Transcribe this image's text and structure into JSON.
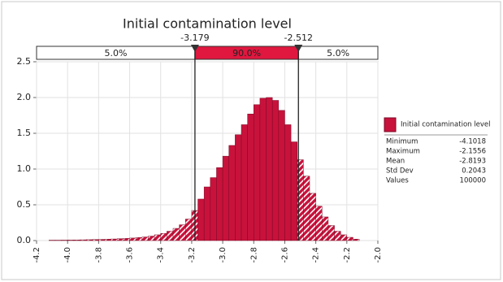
{
  "chart_data": {
    "type": "histogram",
    "title": "Initial contamination level",
    "series_name": "Initial contamination level",
    "color": "#c8123c",
    "bins": [
      -4.12,
      -4.08,
      -4.04,
      -4.0,
      -3.96,
      -3.92,
      -3.88,
      -3.84,
      -3.8,
      -3.76,
      -3.72,
      -3.68,
      -3.64,
      -3.6,
      -3.56,
      -3.52,
      -3.48,
      -3.44,
      -3.4,
      -3.36,
      -3.32,
      -3.28,
      -3.24,
      -3.2,
      -3.16,
      -3.12,
      -3.08,
      -3.04,
      -3.0,
      -2.96,
      -2.92,
      -2.88,
      -2.84,
      -2.8,
      -2.76,
      -2.72,
      -2.68,
      -2.64,
      -2.6,
      -2.56,
      -2.52,
      -2.48,
      -2.44,
      -2.4,
      -2.36,
      -2.32,
      -2.28,
      -2.24,
      -2.2,
      -2.16,
      -2.12
    ],
    "values": [
      0.005,
      0.005,
      0.006,
      0.007,
      0.008,
      0.01,
      0.012,
      0.014,
      0.016,
      0.019,
      0.022,
      0.026,
      0.03,
      0.035,
      0.042,
      0.05,
      0.062,
      0.08,
      0.1,
      0.13,
      0.17,
      0.22,
      0.3,
      0.42,
      0.58,
      0.75,
      0.88,
      1.02,
      1.18,
      1.33,
      1.48,
      1.62,
      1.77,
      1.9,
      1.99,
      2.0,
      1.96,
      1.82,
      1.62,
      1.38,
      1.13,
      0.9,
      0.66,
      0.48,
      0.33,
      0.21,
      0.13,
      0.08,
      0.045,
      0.02
    ],
    "xlim": [
      -4.2,
      -2.0
    ],
    "xticks": [
      -4.2,
      {
        "value": -4.0,
        "label": "-4.0"
      },
      -3.8,
      -3.6,
      -3.4,
      -3.2,
      {
        "value": -3.0,
        "label": "-3.0"
      },
      -2.8,
      -2.6,
      -2.4,
      -2.2,
      {
        "value": -2.0,
        "label": "-2.0"
      }
    ],
    "ylim": [
      0,
      2.5
    ],
    "yticks": [
      {
        "value": 0,
        "label": "0.0"
      },
      0.5,
      {
        "value": 1,
        "label": "1.0"
      },
      1.5,
      {
        "value": 2,
        "label": "2.0"
      },
      2.5
    ],
    "grid": true,
    "delimiters": [
      -3.179,
      -2.512
    ],
    "regions": [
      {
        "value": 5,
        "label": "5.0%"
      },
      {
        "value": 90,
        "label": "90.0%"
      },
      {
        "value": 5,
        "label": "5.0%"
      }
    ],
    "stats": [
      {
        "name": "Minimum",
        "value": -4.1018
      },
      {
        "name": "Maximum",
        "value": -2.1556
      },
      {
        "name": "Mean",
        "value": -2.8193
      },
      {
        "name": "Std Dev",
        "value": 0.2043
      },
      {
        "name": "Values",
        "value": 100000
      }
    ]
  }
}
